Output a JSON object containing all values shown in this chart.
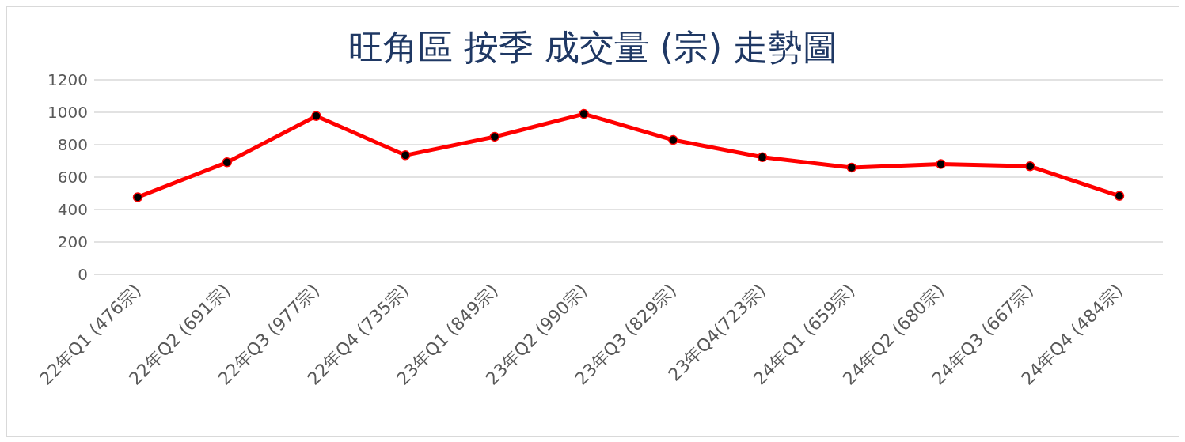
{
  "chart_data": {
    "type": "line",
    "title": "旺角區  按季 成交量 (宗) 走勢圖",
    "categories": [
      "22年Q1 (476宗)",
      "22年Q2 (691宗)",
      "22年Q3 (977宗)",
      "22年Q4 (735宗)",
      "23年Q1 (849宗)",
      "23年Q2 (990宗)",
      "23年Q3 (829宗)",
      "23年Q4(723宗)",
      "24年Q1 (659宗)",
      "24年Q2 (680宗)",
      "24年Q3 (667宗)",
      "24年Q4 (484宗)"
    ],
    "series": [
      {
        "color": "#ff0000",
        "values": [
          476,
          691,
          977,
          735,
          849,
          990,
          829,
          723,
          659,
          680,
          667,
          484
        ]
      }
    ],
    "ylim": [
      0,
      1200
    ],
    "yticks": [
      0,
      200,
      400,
      600,
      800,
      1000,
      1200
    ],
    "grid": "y",
    "marker": "circle",
    "line_style": "solid",
    "legend": false
  }
}
